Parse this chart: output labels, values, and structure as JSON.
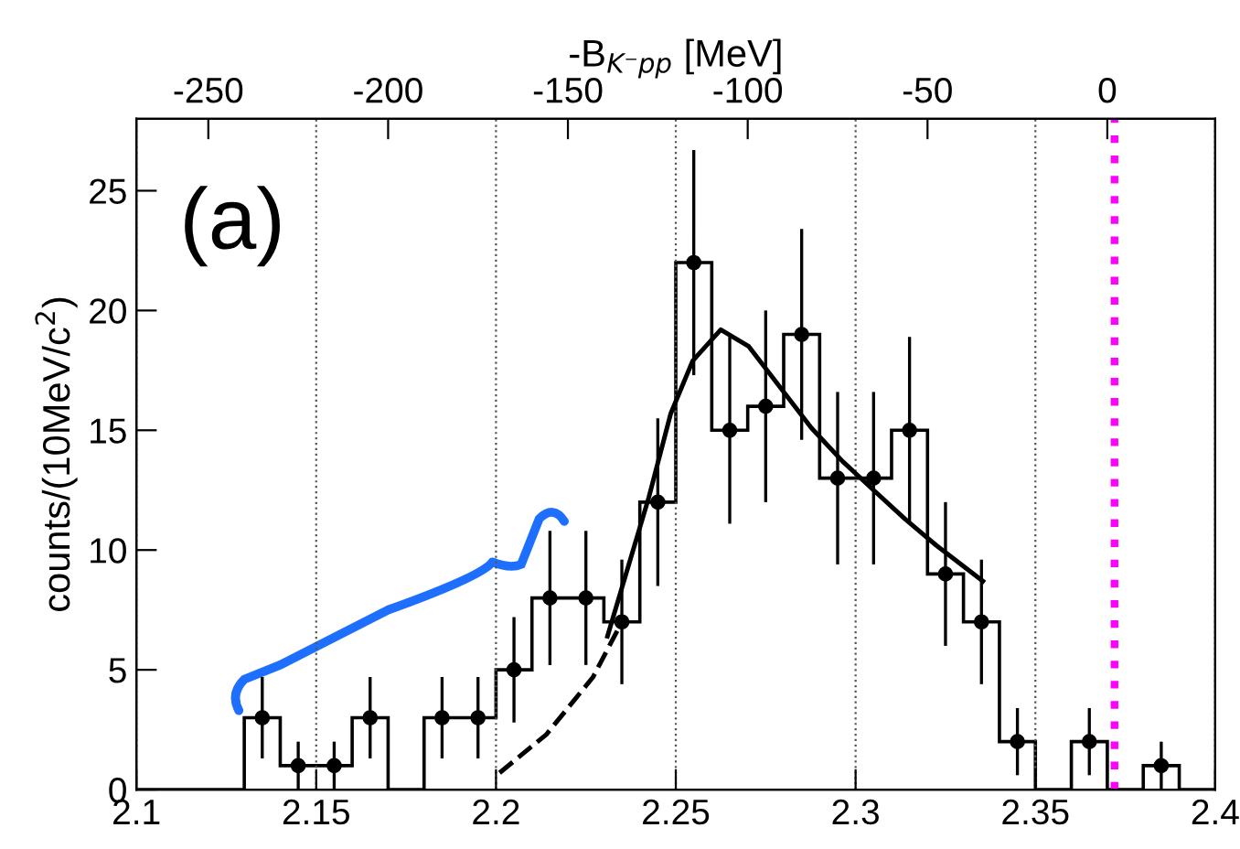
{
  "chart_data": {
    "type": "histogram",
    "ylabel": "counts/(10MeV/c$^{2}$)",
    "x2label": "-B$_{K⁻pp}$ [MeV]",
    "annotations": [
      "(a)"
    ],
    "xlim": [
      2.1,
      2.4
    ],
    "xticks": [
      2.1,
      2.15,
      2.2,
      2.25,
      2.3,
      2.35,
      2.4
    ],
    "x2lim": [
      -270,
      30
    ],
    "x2ticks": [
      -250,
      -200,
      -150,
      -100,
      -50,
      0
    ],
    "ylim": [
      0,
      28
    ],
    "yticks": [
      0,
      5,
      10,
      15,
      20,
      25
    ],
    "grid": "x",
    "series": [
      {
        "color": "#000000",
        "bins": [
          2.1,
          2.11,
          2.12,
          2.13,
          2.14,
          2.15,
          2.16,
          2.17,
          2.18,
          2.19,
          2.2,
          2.21,
          2.22,
          2.23,
          2.24,
          2.25,
          2.26,
          2.27,
          2.28,
          2.29,
          2.3,
          2.31,
          2.32,
          2.33,
          2.34,
          2.35,
          2.36,
          2.37,
          2.38,
          2.39,
          2.4
        ],
        "values": [
          0,
          0,
          0,
          3,
          1,
          1,
          3,
          0,
          3,
          3,
          5,
          8,
          8,
          7,
          12,
          22,
          15,
          16,
          19,
          13,
          13,
          15,
          9,
          7,
          2,
          0,
          2,
          0,
          1,
          0
        ]
      },
      {
        "type": "scatter",
        "color": "#000000",
        "marker": "circle",
        "x": [
          2.135,
          2.145,
          2.155,
          2.165,
          2.185,
          2.195,
          2.205,
          2.215,
          2.225,
          2.235,
          2.245,
          2.255,
          2.265,
          2.275,
          2.285,
          2.295,
          2.305,
          2.315,
          2.325,
          2.335,
          2.345,
          2.365,
          2.385
        ],
        "values": [
          3,
          1,
          1,
          3,
          3,
          3,
          5,
          8,
          8,
          7,
          12,
          22,
          15,
          16,
          19,
          13,
          13,
          15,
          9,
          7,
          2,
          2,
          1
        ],
        "errors": [
          1.7,
          1,
          1,
          1.7,
          1.7,
          1.7,
          2.2,
          2.8,
          2.8,
          2.6,
          3.5,
          4.7,
          3.9,
          4,
          4.4,
          3.6,
          3.6,
          3.9,
          3,
          2.6,
          1.4,
          1.4,
          1
        ]
      },
      {
        "type": "line",
        "color": "#000000",
        "line_style": "dashed",
        "x": [
          2.201,
          2.214,
          2.227,
          2.235
        ],
        "values": [
          0.7,
          2.3,
          4.7,
          7.0
        ]
      },
      {
        "type": "line",
        "color": "#000000",
        "line_style": "solid",
        "x": [
          2.231,
          2.2425,
          2.2486,
          2.2547,
          2.2625,
          2.2703,
          2.279,
          2.2877,
          2.2964,
          2.305,
          2.3137,
          2.3224,
          2.3354
        ],
        "values": [
          6.4,
          12.2,
          15.7,
          17.9,
          19.2,
          18.5,
          16.8,
          15.1,
          13.7,
          12.5,
          11.3,
          10.2,
          8.7
        ]
      }
    ],
    "ref_lines": [
      {
        "axis": "x",
        "value": 2.372,
        "label": null,
        "color": "#ff00ff",
        "line_style": "dotted"
      }
    ]
  }
}
